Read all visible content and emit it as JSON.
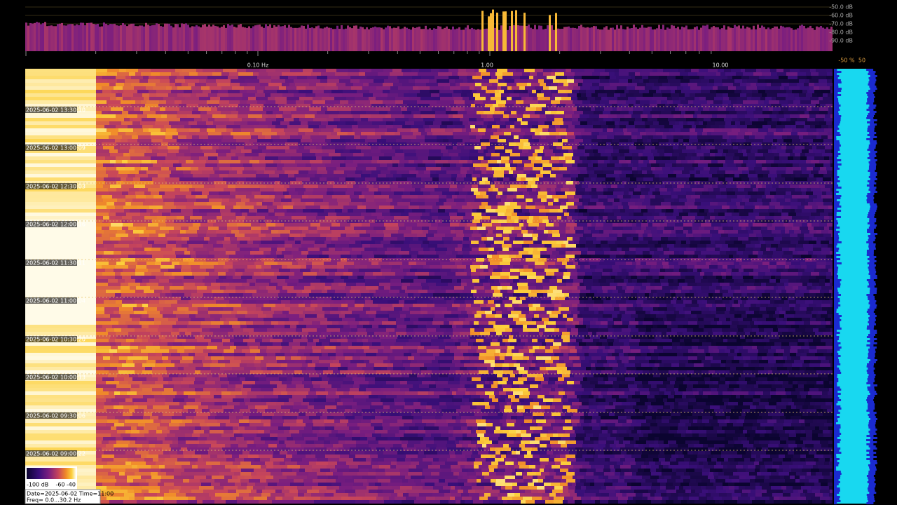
{
  "spectrum_db_labels": [
    "-50.0 dB",
    "-60.0 dB",
    "-70.0 dB",
    "-80.0 dB",
    "-90.0 dB"
  ],
  "freq_labels": [
    "0.10 Hz",
    "1.00",
    "10.00"
  ],
  "percent_labels": [
    "-50 %",
    "50"
  ],
  "time_labels": [
    "2025-06-02 13:30:10",
    "2025-06-02 13:00:09",
    "2025-06-02 12:30:03",
    "2025-06-02 12:00:16",
    "2025-06-02 11:30:11",
    "2025-06-02 11:00:04",
    "2025-06-02 10:30:20",
    "2025-06-02 10:00:13",
    "2025-06-02 09:30:06",
    "2025-06-02 09:00:22"
  ],
  "colorbar": {
    "labels": [
      "-100 dB",
      "-60",
      "-40"
    ]
  },
  "info": {
    "line1": "Date=2025-06-02 Time=11:00",
    "line2": "Freq= 0.0...30.2 Hz"
  }
}
